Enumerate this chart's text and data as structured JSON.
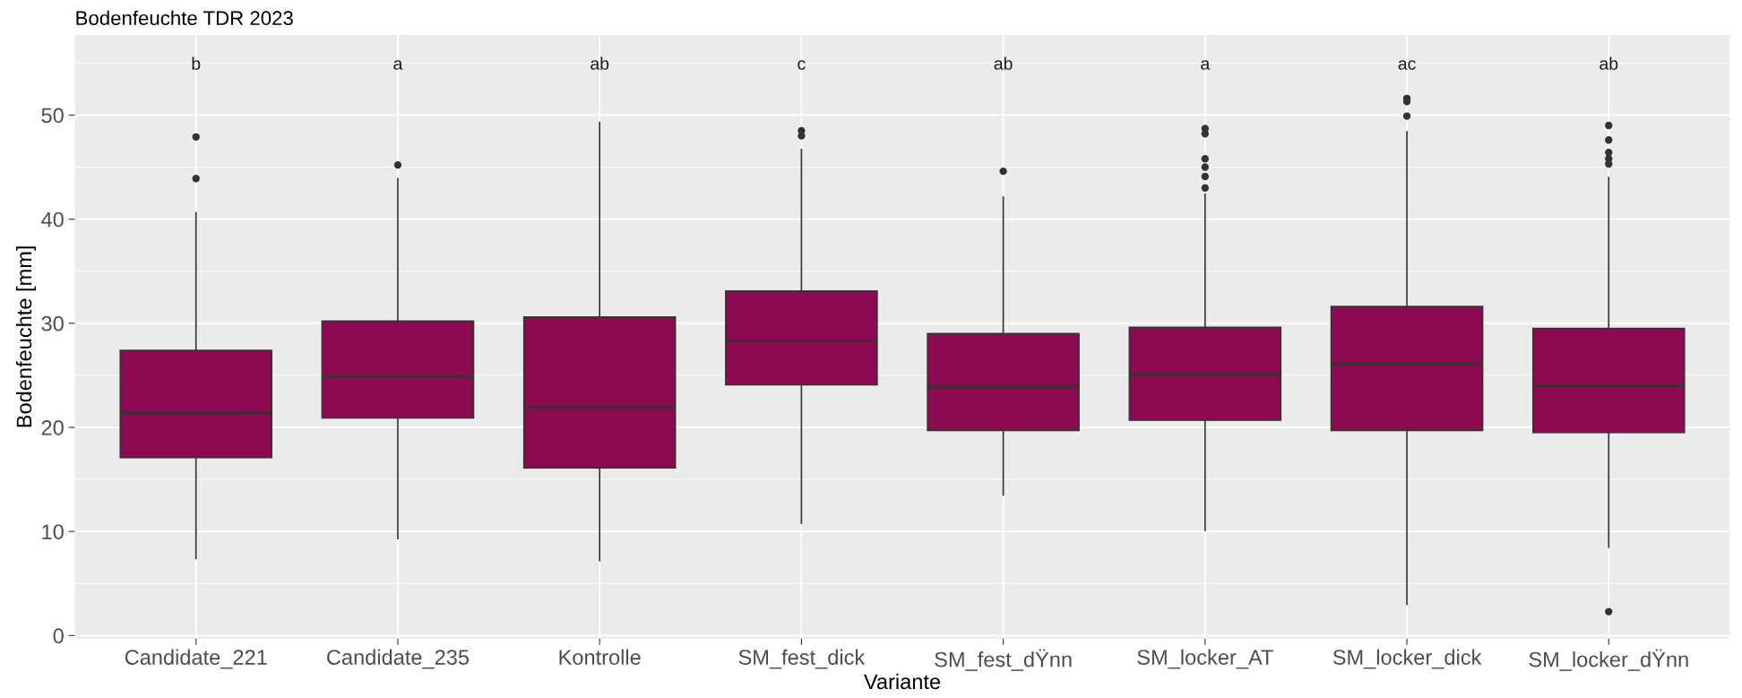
{
  "chart_data": {
    "type": "box",
    "title": "Bodenfeuchte TDR 2023",
    "xlabel": "Variante",
    "ylabel": "Bodenfeuchte [mm]",
    "categories": [
      "Candidate_221",
      "Candidate_235",
      "Kontrolle",
      "SM_fest_dick",
      "SM_fest_dŸnn",
      "SM_locker_AT",
      "SM_locker_dick",
      "SM_locker_dŸnn"
    ],
    "color": "#8b0a50",
    "boxes": [
      {
        "low": 7.4,
        "q1": 17.1,
        "median": 21.4,
        "q3": 27.4,
        "high": 40.6,
        "outliers": [
          47.9,
          43.9
        ]
      },
      {
        "low": 9.3,
        "q1": 20.9,
        "median": 24.9,
        "q3": 30.2,
        "high": 43.9,
        "outliers": [
          45.2
        ]
      },
      {
        "low": 7.2,
        "q1": 16.1,
        "median": 21.9,
        "q3": 30.6,
        "high": 49.3
      },
      {
        "low": 10.8,
        "q1": 24.1,
        "median": 28.3,
        "q3": 33.1,
        "high": 46.7,
        "outliers": [
          48.5,
          48.0
        ]
      },
      {
        "low": 13.5,
        "q1": 19.7,
        "median": 23.9,
        "q3": 29.0,
        "high": 42.1,
        "outliers": [
          44.6
        ]
      },
      {
        "low": 10.1,
        "q1": 20.7,
        "median": 25.1,
        "q3": 29.6,
        "high": 42.4,
        "outliers": [
          48.7,
          48.2,
          45.8,
          45.0,
          44.1,
          43.0
        ]
      },
      {
        "low": 3.0,
        "q1": 19.7,
        "median": 26.1,
        "q3": 31.6,
        "high": 48.4,
        "outliers": [
          51.6,
          51.3,
          49.9
        ]
      },
      {
        "low": 8.5,
        "q1": 19.5,
        "median": 24.0,
        "q3": 29.5,
        "high": 44.0,
        "outliers": [
          49.0,
          47.6,
          46.4,
          45.8,
          45.3,
          2.3
        ]
      }
    ],
    "annotations": [
      "b",
      "a",
      "ab",
      "c",
      "ab",
      "a",
      "ac",
      "ab"
    ],
    "ylim": [
      -0.3,
      57.7
    ],
    "yticks": [
      0,
      10,
      20,
      30,
      40,
      50
    ],
    "grid": true
  }
}
